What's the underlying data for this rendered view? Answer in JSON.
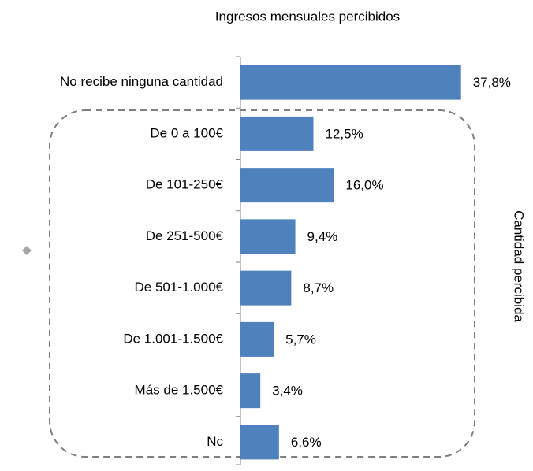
{
  "chart_data": {
    "type": "bar",
    "orientation": "horizontal",
    "title": "Ingresos mensuales percibidos",
    "annotation": "Cantidad percibida",
    "categories": [
      "No recibe ninguna cantidad",
      "De 0 a 100€",
      "De 101-250€",
      "De 251-500€",
      "De 501-1.000€",
      "De 1.001-1.500€",
      "Más de 1.500€",
      "Nc"
    ],
    "values": [
      37.8,
      12.5,
      16.0,
      9.4,
      8.7,
      5.7,
      3.4,
      6.6
    ],
    "value_labels": [
      "37,8%",
      "12,5%",
      "16,0%",
      "9,4%",
      "8,7%",
      "5,7%",
      "3,4%",
      "6,6%"
    ],
    "color": "#4f81bd",
    "xlim": [
      0,
      40
    ]
  }
}
